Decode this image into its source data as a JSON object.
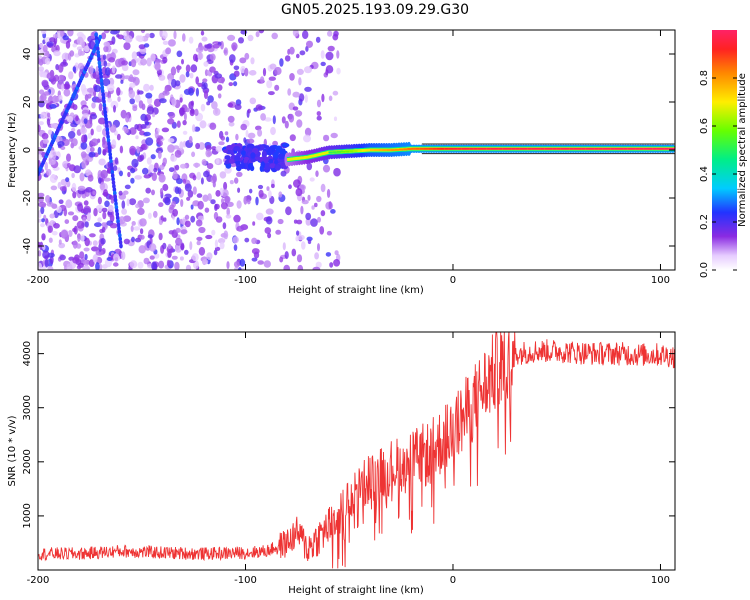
{
  "title": "GN05.2025.193.09.29.G30",
  "chart_data": [
    {
      "type": "heatmap",
      "xlabel": "Height of straight line (km)",
      "ylabel": "Frequency (Hz)",
      "xlim": [
        -200,
        107
      ],
      "ylim": [
        -50,
        50
      ],
      "x_ticks": [
        "-200",
        "-100",
        "0",
        "100"
      ],
      "y_ticks": [
        "40",
        "20",
        "0",
        "-20",
        "-40"
      ],
      "colorbar": {
        "label": "Normalized spectral amplitude",
        "range": [
          0,
          1
        ],
        "ticks": [
          "0.0",
          "0.2",
          "0.4",
          "0.6",
          "0.8"
        ]
      },
      "signal_track": {
        "x": [
          -80,
          -70,
          -60,
          -50,
          -40,
          -30,
          -20,
          -10,
          0,
          20,
          50,
          107
        ],
        "freq": [
          -4,
          -3,
          -1,
          -0.5,
          0,
          0,
          0.5,
          0.5,
          0.5,
          0.5,
          0.5,
          0.5
        ],
        "amplitude": [
          0.3,
          0.4,
          0.5,
          0.6,
          0.75,
          0.8,
          0.85,
          0.9,
          0.95,
          0.97,
          0.98,
          1.0
        ]
      },
      "line_features": [
        {
          "x": [
            -200,
            -170
          ],
          "freq": [
            -10,
            47
          ]
        },
        {
          "x": [
            -172,
            -160
          ],
          "freq": [
            48,
            -40
          ]
        }
      ],
      "noise_region_x": [
        -200,
        -60
      ]
    },
    {
      "type": "line",
      "xlabel": "Height of straight line (km)",
      "ylabel": "SNR (10 * v/v)",
      "xlim": [
        -200,
        107
      ],
      "ylim": [
        0,
        4400
      ],
      "x_ticks": [
        "-200",
        "-100",
        "0",
        "100"
      ],
      "y_ticks": [
        "1000",
        "2000",
        "3000",
        "4000"
      ],
      "series": [
        {
          "color": "#ee3333",
          "x": [
            -200,
            -180,
            -160,
            -140,
            -120,
            -100,
            -90,
            -80,
            -75,
            -70,
            -65,
            -60,
            -55,
            -50,
            -45,
            -40,
            -35,
            -30,
            -25,
            -20,
            -15,
            -10,
            -5,
            0,
            5,
            10,
            15,
            20,
            25,
            30,
            40,
            50,
            60,
            70,
            80,
            90,
            100,
            107
          ],
          "y": [
            300,
            300,
            350,
            320,
            300,
            320,
            350,
            500,
            700,
            400,
            600,
            800,
            1000,
            1300,
            1500,
            1700,
            1800,
            1900,
            1950,
            2000,
            2100,
            2200,
            2400,
            2600,
            2800,
            3100,
            3400,
            3650,
            3850,
            4000,
            4050,
            4050,
            4020,
            4000,
            4000,
            3980,
            3980,
            3950
          ]
        }
      ]
    }
  ]
}
